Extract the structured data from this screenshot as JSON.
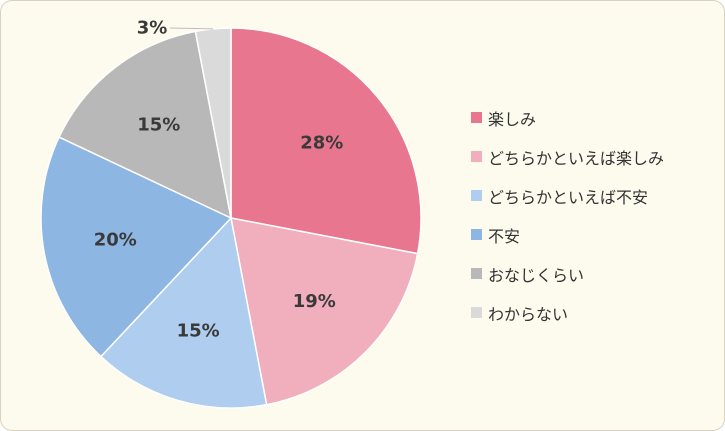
{
  "chart_data": {
    "type": "pie",
    "categories": [
      "楽しみ",
      "どちらかといえば楽しみ",
      "どちらかといえば不安",
      "不安",
      "おなじくらい",
      "わからない"
    ],
    "values": [
      28,
      19,
      15,
      20,
      15,
      3
    ],
    "labels": [
      "28%",
      "19%",
      "15%",
      "20%",
      "15%",
      "3%"
    ],
    "colors": [
      "#e8768f",
      "#f1aebd",
      "#afcdee",
      "#8db6e3",
      "#b8b8b8",
      "#dadada"
    ],
    "start_angle_deg": 0,
    "direction": "clockwise",
    "legend_position": "right"
  }
}
